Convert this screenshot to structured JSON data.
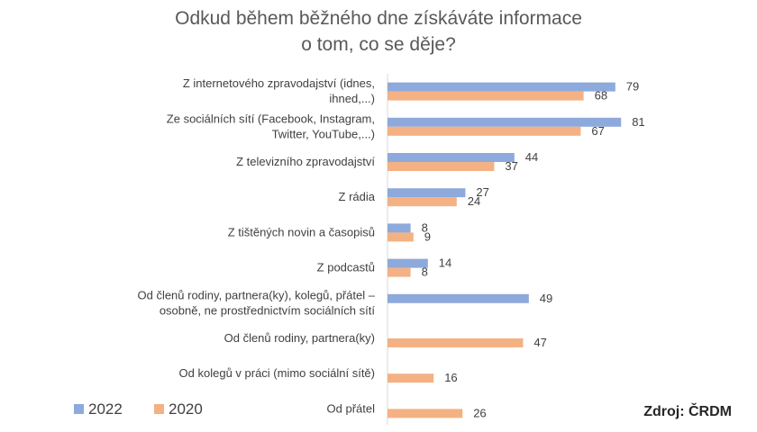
{
  "chart_data": {
    "type": "bar",
    "orientation": "horizontal",
    "title": [
      "Odkud během běžného dne získáváte informace",
      "o tom, co se děje?"
    ],
    "categories": [
      [
        "Z internetového zpravodajství (idnes,",
        "ihned,...)"
      ],
      [
        "Ze sociálních sítí (Facebook, Instagram,",
        "Twitter, YouTube,...)"
      ],
      [
        "Z televizního zpravodajství"
      ],
      [
        "Z rádia"
      ],
      [
        "Z tištěných novin a časopisů"
      ],
      [
        "Z podcastů"
      ],
      [
        "Od členů rodiny, partnera(ky), kolegů, přátel –",
        "osobně, ne prostřednictvím sociálních sítí"
      ],
      [
        "Od členů rodiny, partnera(ky)"
      ],
      [
        "Od kolegů v práci (mimo sociální sítě)"
      ],
      [
        "Od přátel"
      ]
    ],
    "series": [
      {
        "name": "2022",
        "color": "#8EA9DB",
        "values": [
          79,
          81,
          44,
          27,
          8,
          14,
          49,
          null,
          null,
          null
        ]
      },
      {
        "name": "2020",
        "color": "#F4B183",
        "values": [
          68,
          67,
          37,
          24,
          9,
          8,
          null,
          47,
          16,
          26
        ]
      }
    ],
    "legend_position": "bottom-left",
    "grid": false,
    "source": "Zdroj: ČRDM"
  }
}
